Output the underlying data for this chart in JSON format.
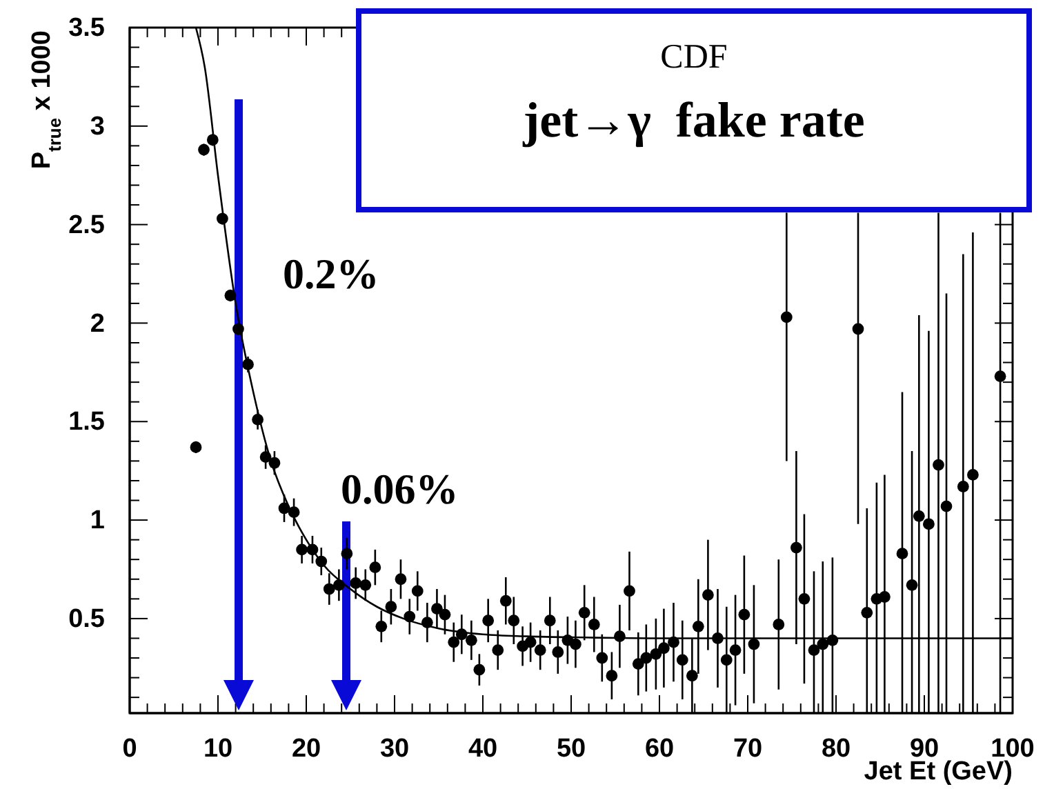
{
  "chart_data": {
    "type": "scatter",
    "title": "CDF",
    "subtitle": "jet→γ  fake rate",
    "xlabel": "Jet Et (GeV)",
    "ylabel": "P$_{true}$ x 1000",
    "xlim": [
      0,
      100
    ],
    "ylim": [
      0.02,
      3.5
    ],
    "xticks": [
      0,
      {
        "value": 2,
        "label": null
      },
      {
        "value": 4,
        "label": null
      },
      {
        "value": 6,
        "label": null
      },
      {
        "value": 8,
        "label": null
      },
      10,
      {
        "value": 12,
        "label": null
      },
      {
        "value": 14,
        "label": null
      },
      {
        "value": 16,
        "label": null
      },
      {
        "value": 18,
        "label": null
      },
      20,
      {
        "value": 22,
        "label": null
      },
      {
        "value": 24,
        "label": null
      },
      {
        "value": 26,
        "label": null
      },
      {
        "value": 28,
        "label": null
      },
      30,
      {
        "value": 32,
        "label": null
      },
      {
        "value": 34,
        "label": null
      },
      {
        "value": 36,
        "label": null
      },
      {
        "value": 38,
        "label": null
      },
      40,
      {
        "value": 42,
        "label": null
      },
      {
        "value": 44,
        "label": null
      },
      {
        "value": 46,
        "label": null
      },
      {
        "value": 48,
        "label": null
      },
      50,
      {
        "value": 52,
        "label": null
      },
      {
        "value": 54,
        "label": null
      },
      {
        "value": 56,
        "label": null
      },
      {
        "value": 58,
        "label": null
      },
      60,
      {
        "value": 62,
        "label": null
      },
      {
        "value": 64,
        "label": null
      },
      {
        "value": 66,
        "label": null
      },
      {
        "value": 68,
        "label": null
      },
      70,
      {
        "value": 72,
        "label": null
      },
      {
        "value": 74,
        "label": null
      },
      {
        "value": 76,
        "label": null
      },
      {
        "value": 78,
        "label": null
      },
      80,
      {
        "value": 82,
        "label": null
      },
      {
        "value": 84,
        "label": null
      },
      {
        "value": 86,
        "label": null
      },
      {
        "value": 88,
        "label": null
      },
      90,
      {
        "value": 92,
        "label": null
      },
      {
        "value": 94,
        "label": null
      },
      {
        "value": 96,
        "label": null
      },
      {
        "value": 98,
        "label": null
      },
      100
    ],
    "yticks": [
      {
        "value": 0.1,
        "label": null
      },
      {
        "value": 0.2,
        "label": null
      },
      {
        "value": 0.3,
        "label": null
      },
      {
        "value": 0.4,
        "label": null
      },
      0.5,
      {
        "value": 0.6,
        "label": null
      },
      {
        "value": 0.7,
        "label": null
      },
      {
        "value": 0.8,
        "label": null
      },
      {
        "value": 0.9,
        "label": null
      },
      1,
      {
        "value": 1.1,
        "label": null
      },
      {
        "value": 1.2,
        "label": null
      },
      {
        "value": 1.3,
        "label": null
      },
      {
        "value": 1.4,
        "label": null
      },
      1.5,
      {
        "value": 1.6,
        "label": null
      },
      {
        "value": 1.7,
        "label": null
      },
      {
        "value": 1.8,
        "label": null
      },
      {
        "value": 1.9,
        "label": null
      },
      2,
      {
        "value": 2.1,
        "label": null
      },
      {
        "value": 2.2,
        "label": null
      },
      {
        "value": 2.3,
        "label": null
      },
      {
        "value": 2.4,
        "label": null
      },
      2.5,
      {
        "value": 2.6,
        "label": null
      },
      {
        "value": 2.7,
        "label": null
      },
      {
        "value": 2.8,
        "label": null
      },
      {
        "value": 2.9,
        "label": null
      },
      3,
      {
        "value": 3.1,
        "label": null
      },
      {
        "value": 3.2,
        "label": null
      },
      {
        "value": 3.3,
        "label": null
      },
      {
        "value": 3.4,
        "label": null
      },
      3.5
    ],
    "grid": false,
    "marker": "circle",
    "annotations": [
      "0.2%",
      "0.06%"
    ],
    "series": [
      {
        "color": "#000000",
        "x": [
          7.5,
          8.4,
          9.4,
          10.5,
          11.4,
          12.3,
          13.4,
          14.5,
          15.4,
          16.4,
          17.5,
          18.6,
          19.5,
          20.7,
          21.7,
          22.6,
          23.7,
          24.6,
          25.6,
          26.7,
          27.8,
          28.5,
          29.6,
          30.7,
          31.7,
          32.6,
          33.7,
          34.8,
          35.7,
          36.7,
          37.6,
          38.7,
          39.6,
          40.6,
          41.7,
          42.6,
          43.5,
          44.5,
          45.4,
          46.5,
          47.6,
          48.5,
          49.6,
          50.5,
          51.5,
          52.6,
          53.5,
          54.6,
          55.5,
          56.6,
          57.6,
          58.5,
          59.6,
          60.5,
          61.6,
          62.6,
          63.7,
          64.4,
          65.5,
          66.6,
          67.6,
          68.6,
          69.6,
          70.7,
          73.5,
          74.4,
          75.5,
          76.4,
          77.5,
          78.5,
          79.6,
          82.5,
          83.5,
          84.6,
          85.5,
          87.5,
          88.6,
          89.4,
          90.5,
          91.6,
          92.5,
          94.4,
          95.5,
          98.6
        ],
        "values": [
          1.37,
          2.88,
          2.93,
          2.53,
          2.14,
          1.97,
          1.79,
          1.51,
          1.32,
          1.29,
          1.06,
          1.04,
          0.85,
          0.85,
          0.79,
          0.65,
          0.67,
          0.83,
          0.68,
          0.67,
          0.76,
          0.46,
          0.56,
          0.7,
          0.51,
          0.64,
          0.48,
          0.55,
          0.52,
          0.38,
          0.42,
          0.39,
          0.24,
          0.49,
          0.34,
          0.59,
          0.49,
          0.36,
          0.38,
          0.34,
          0.49,
          0.33,
          0.39,
          0.37,
          0.53,
          0.47,
          0.3,
          0.21,
          0.41,
          0.64,
          0.27,
          0.3,
          0.32,
          0.35,
          0.38,
          0.29,
          0.21,
          0.46,
          0.62,
          0.4,
          0.29,
          0.34,
          0.52,
          0.37,
          0.47,
          2.03,
          0.86,
          0.6,
          0.34,
          0.37,
          0.39,
          1.97,
          0.53,
          0.6,
          0.61,
          0.83,
          0.67,
          1.02,
          0.98,
          1.28,
          1.07,
          1.17,
          1.23,
          1.73
        ],
        "errors": [
          0.03,
          0.03,
          0.03,
          0.03,
          0.03,
          0.03,
          0.04,
          0.05,
          0.06,
          0.06,
          0.07,
          0.07,
          0.07,
          0.07,
          0.07,
          0.08,
          0.08,
          0.08,
          0.08,
          0.08,
          0.09,
          0.08,
          0.09,
          0.1,
          0.09,
          0.1,
          0.1,
          0.1,
          0.1,
          0.1,
          0.1,
          0.1,
          0.08,
          0.11,
          0.1,
          0.12,
          0.12,
          0.1,
          0.1,
          0.1,
          0.12,
          0.11,
          0.12,
          0.12,
          0.14,
          0.14,
          0.12,
          0.12,
          0.16,
          0.2,
          0.16,
          0.17,
          0.18,
          0.2,
          0.2,
          0.2,
          0.19,
          0.24,
          0.28,
          0.25,
          0.27,
          0.28,
          0.3,
          0.3,
          0.33,
          [
            1.3,
            2.56
          ],
          0.49,
          0.43,
          [
            0.02,
            0.74
          ],
          [
            0.02,
            0.79
          ],
          [
            0.02,
            0.81
          ],
          [
            0.98,
            2.56
          ],
          [
            0.02,
            1.06
          ],
          [
            0.02,
            1.19
          ],
          [
            0.02,
            1.23
          ],
          [
            0.02,
            1.65
          ],
          [
            0.02,
            1.35
          ],
          [
            0.02,
            2.04
          ],
          [
            0.02,
            1.96
          ],
          [
            0.02,
            2.56
          ],
          [
            0.02,
            2.15
          ],
          [
            0.02,
            2.35
          ],
          [
            0.02,
            2.46
          ],
          [
            0.02,
            2.56
          ]
        ]
      },
      {
        "type": "line",
        "color": "#000000",
        "marker": "none",
        "x": [
          7.5,
          8.5,
          10,
          12,
          14,
          16,
          18,
          20,
          22,
          25,
          28,
          31,
          35,
          40,
          45,
          50,
          60,
          100
        ],
        "values": [
          3.5,
          3.3,
          2.75,
          2.1,
          1.65,
          1.3,
          1.07,
          0.9,
          0.77,
          0.65,
          0.56,
          0.5,
          0.45,
          0.42,
          0.41,
          0.405,
          0.4,
          0.4
        ]
      }
    ]
  }
}
